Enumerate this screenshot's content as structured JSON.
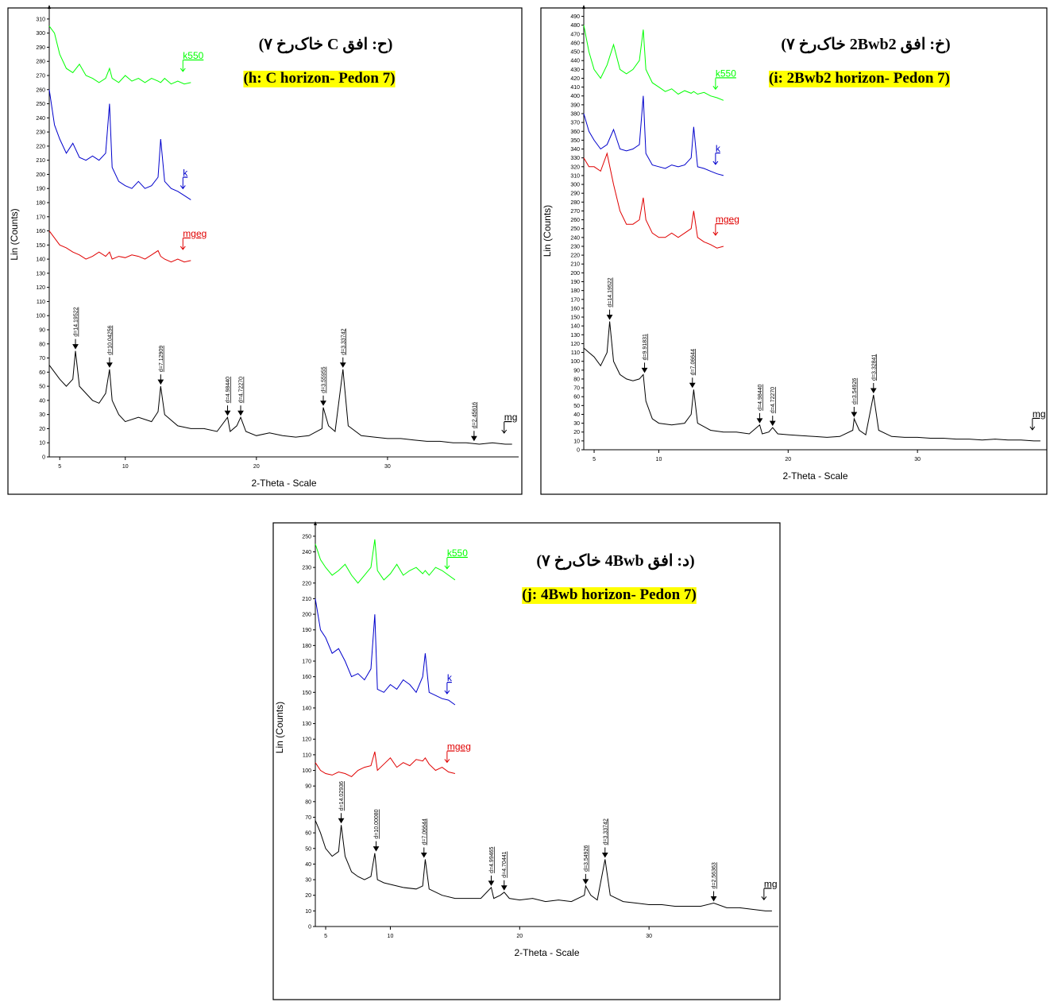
{
  "chart_data": [
    {
      "type": "line",
      "title": "(ح: افق C خاک‌رخ ۷)",
      "subtitle": "(h: C horizon- Pedon 7)",
      "xlabel": "2-Theta - Scale",
      "ylabel": "Lin (Counts)",
      "xlim": [
        4.2,
        40
      ],
      "xticks": [
        5,
        10,
        20,
        30
      ],
      "ylim": [
        0,
        315
      ],
      "yticks": [
        0,
        10,
        20,
        30,
        40,
        50,
        60,
        70,
        80,
        90,
        100,
        110,
        120,
        130,
        140,
        150,
        160,
        170,
        180,
        190,
        200,
        210,
        220,
        230,
        240,
        250,
        260,
        270,
        280,
        290,
        300,
        310
      ],
      "series": [
        {
          "name": "k550",
          "color": "#00ff00",
          "x": [
            4.2,
            4.6,
            5,
            5.5,
            6,
            6.5,
            7,
            7.5,
            8,
            8.5,
            8.8,
            9,
            9.5,
            10,
            10.5,
            11,
            11.5,
            12,
            12.5,
            12.7,
            13,
            13.5,
            14,
            14.5,
            15
          ],
          "values": [
            305,
            300,
            285,
            275,
            272,
            278,
            270,
            268,
            265,
            268,
            275,
            268,
            265,
            270,
            266,
            268,
            265,
            268,
            266,
            265,
            268,
            264,
            266,
            264,
            265
          ]
        },
        {
          "name": "k",
          "color": "#0000cc",
          "x": [
            4.2,
            4.6,
            5,
            5.5,
            6,
            6.5,
            7,
            7.5,
            8,
            8.5,
            8.8,
            9,
            9.5,
            10,
            10.5,
            11,
            11.5,
            12,
            12.5,
            12.7,
            13,
            13.5,
            14,
            14.5,
            15
          ],
          "values": [
            260,
            235,
            225,
            215,
            222,
            212,
            210,
            213,
            210,
            215,
            250,
            205,
            195,
            192,
            190,
            195,
            190,
            192,
            198,
            225,
            195,
            190,
            188,
            185,
            182
          ]
        },
        {
          "name": "mgeg",
          "color": "#e00000",
          "x": [
            4.2,
            4.6,
            5,
            5.5,
            6,
            6.5,
            7,
            7.5,
            8,
            8.5,
            8.8,
            9,
            9.5,
            10,
            10.5,
            11,
            11.5,
            12,
            12.5,
            12.7,
            13,
            13.5,
            14,
            14.5,
            15
          ],
          "values": [
            160,
            155,
            150,
            148,
            145,
            143,
            140,
            142,
            145,
            142,
            145,
            140,
            142,
            141,
            143,
            142,
            140,
            143,
            146,
            142,
            140,
            138,
            140,
            138,
            139
          ]
        },
        {
          "name": "mg",
          "color": "#000000",
          "x": [
            4.2,
            4.6,
            5,
            5.5,
            6,
            6.2,
            6.5,
            7,
            7.5,
            8,
            8.5,
            8.8,
            9,
            9.5,
            10,
            11,
            12,
            12.5,
            12.7,
            13,
            14,
            15,
            16,
            17,
            17.8,
            18,
            18.5,
            18.8,
            19.2,
            20,
            21,
            22,
            23,
            24,
            25,
            25.1,
            25.5,
            26,
            26.6,
            27,
            28,
            29,
            30,
            31,
            32,
            33,
            34,
            35,
            36,
            37,
            38,
            39,
            39.5
          ],
          "values": [
            65,
            60,
            55,
            50,
            55,
            75,
            50,
            45,
            40,
            38,
            45,
            62,
            40,
            30,
            25,
            28,
            25,
            32,
            50,
            30,
            22,
            20,
            20,
            18,
            28,
            18,
            22,
            28,
            18,
            15,
            17,
            15,
            14,
            15,
            20,
            35,
            22,
            18,
            62,
            22,
            15,
            14,
            13,
            13,
            12,
            11,
            11,
            10,
            10,
            9,
            10,
            9,
            9
          ]
        }
      ],
      "annotations": [
        {
          "text": "d=14.19522",
          "x": 6.2,
          "y": 75
        },
        {
          "text": "d=10.04256",
          "x": 8.8,
          "y": 62
        },
        {
          "text": "d=7.12909",
          "x": 12.7,
          "y": 50
        },
        {
          "text": "d=4.98440",
          "x": 17.8,
          "y": 28
        },
        {
          "text": "d=4.72270",
          "x": 18.8,
          "y": 28
        },
        {
          "text": "d=3.55955",
          "x": 25.1,
          "y": 35
        },
        {
          "text": "d=3.33742",
          "x": 26.6,
          "y": 62
        },
        {
          "text": "d=2.45616",
          "x": 36.6,
          "y": 10
        }
      ]
    },
    {
      "type": "line",
      "title": "(خ: افق 2Bwb2 خاک‌رخ ۷)",
      "subtitle": "(i: 2Bwb2 horizon- Pedon 7)",
      "xlabel": "2-Theta - Scale",
      "ylabel": "Lin (Counts)",
      "xlim": [
        4.2,
        40
      ],
      "xticks": [
        5,
        10,
        20,
        30
      ],
      "ylim": [
        0,
        495
      ],
      "yticks": [
        0,
        10,
        20,
        30,
        40,
        50,
        60,
        70,
        80,
        90,
        100,
        110,
        120,
        130,
        140,
        150,
        160,
        170,
        180,
        190,
        200,
        210,
        220,
        230,
        240,
        250,
        260,
        270,
        280,
        290,
        300,
        310,
        320,
        330,
        340,
        350,
        360,
        370,
        380,
        390,
        400,
        410,
        420,
        430,
        440,
        450,
        460,
        470,
        480,
        490
      ],
      "series": [
        {
          "name": "k550",
          "color": "#00ff00",
          "x": [
            4.2,
            4.6,
            5,
            5.5,
            6,
            6.5,
            7,
            7.5,
            8,
            8.5,
            8.8,
            9,
            9.5,
            10,
            10.5,
            11,
            11.5,
            12,
            12.5,
            12.7,
            13,
            13.5,
            14,
            14.5,
            15
          ],
          "values": [
            480,
            450,
            430,
            420,
            435,
            458,
            430,
            425,
            430,
            440,
            475,
            430,
            415,
            410,
            405,
            408,
            402,
            406,
            403,
            405,
            402,
            404,
            400,
            398,
            395
          ]
        },
        {
          "name": "k",
          "color": "#0000cc",
          "x": [
            4.2,
            4.6,
            5,
            5.5,
            6,
            6.5,
            7,
            7.5,
            8,
            8.5,
            8.8,
            9,
            9.5,
            10,
            10.5,
            11,
            11.5,
            12,
            12.5,
            12.7,
            13,
            13.5,
            14,
            14.5,
            15
          ],
          "values": [
            380,
            360,
            350,
            340,
            345,
            362,
            340,
            338,
            340,
            345,
            400,
            335,
            322,
            320,
            318,
            322,
            320,
            322,
            330,
            365,
            320,
            318,
            315,
            312,
            310
          ]
        },
        {
          "name": "mgeg",
          "color": "#e00000",
          "x": [
            4.2,
            4.6,
            5,
            5.5,
            6,
            6.5,
            7,
            7.5,
            8,
            8.5,
            8.8,
            9,
            9.5,
            10,
            10.5,
            11,
            11.5,
            12,
            12.5,
            12.7,
            13,
            13.5,
            14,
            14.5,
            15
          ],
          "values": [
            330,
            320,
            320,
            315,
            335,
            300,
            270,
            255,
            255,
            260,
            285,
            260,
            245,
            240,
            240,
            245,
            240,
            245,
            250,
            270,
            240,
            235,
            232,
            228,
            230
          ]
        },
        {
          "name": "mg",
          "color": "#000000",
          "x": [
            4.2,
            4.6,
            5,
            5.5,
            6,
            6.2,
            6.5,
            7,
            7.5,
            8,
            8.5,
            8.8,
            9,
            9.5,
            10,
            11,
            12,
            12.5,
            12.7,
            13,
            14,
            15,
            16,
            17,
            17.8,
            18,
            18.5,
            18.8,
            19.2,
            20,
            21,
            22,
            23,
            24,
            25,
            25.1,
            25.5,
            26,
            26.6,
            27,
            28,
            29,
            30,
            31,
            32,
            33,
            34,
            35,
            36,
            37,
            38,
            39,
            39.5
          ],
          "values": [
            115,
            110,
            105,
            95,
            110,
            145,
            100,
            85,
            80,
            78,
            80,
            85,
            55,
            35,
            30,
            28,
            30,
            40,
            68,
            30,
            22,
            20,
            20,
            18,
            28,
            18,
            20,
            25,
            18,
            17,
            16,
            15,
            14,
            15,
            22,
            35,
            22,
            17,
            62,
            22,
            15,
            14,
            14,
            13,
            13,
            12,
            12,
            11,
            12,
            11,
            11,
            10,
            10
          ]
        }
      ],
      "annotations": [
        {
          "text": "d=14.19522",
          "x": 6.2,
          "y": 145
        },
        {
          "text": "d=9.91831",
          "x": 8.9,
          "y": 85
        },
        {
          "text": "d=7.06644",
          "x": 12.6,
          "y": 68
        },
        {
          "text": "d=4.98440",
          "x": 17.8,
          "y": 28
        },
        {
          "text": "d=4.72270",
          "x": 18.8,
          "y": 25
        },
        {
          "text": "d=3.54926",
          "x": 25.1,
          "y": 35
        },
        {
          "text": "d=3.32841",
          "x": 26.6,
          "y": 62
        }
      ]
    },
    {
      "type": "line",
      "title": "(د: افق 4Bwb خاک‌رخ ۷)",
      "subtitle": "(j: 4Bwb horizon- Pedon 7)",
      "xlabel": "2-Theta - Scale",
      "ylabel": "Lin (Counts)",
      "xlim": [
        4.2,
        40
      ],
      "xticks": [
        5,
        10,
        20,
        30
      ],
      "ylim": [
        0,
        255
      ],
      "yticks": [
        0,
        10,
        20,
        30,
        40,
        50,
        60,
        70,
        80,
        90,
        100,
        110,
        120,
        130,
        140,
        150,
        160,
        170,
        180,
        190,
        200,
        210,
        220,
        230,
        240,
        250
      ],
      "series": [
        {
          "name": "k550",
          "color": "#00ff00",
          "x": [
            4.2,
            4.6,
            5,
            5.5,
            6,
            6.5,
            7,
            7.5,
            8,
            8.5,
            8.8,
            9,
            9.5,
            10,
            10.5,
            11,
            11.5,
            12,
            12.5,
            12.7,
            13,
            13.5,
            14,
            14.5,
            15
          ],
          "values": [
            245,
            235,
            230,
            225,
            228,
            232,
            225,
            220,
            225,
            230,
            248,
            228,
            222,
            226,
            232,
            225,
            228,
            230,
            226,
            228,
            225,
            230,
            228,
            225,
            222
          ]
        },
        {
          "name": "k",
          "color": "#0000cc",
          "x": [
            4.2,
            4.6,
            5,
            5.5,
            6,
            6.5,
            7,
            7.5,
            8,
            8.5,
            8.8,
            9,
            9.5,
            10,
            10.5,
            11,
            11.5,
            12,
            12.5,
            12.7,
            13,
            13.5,
            14,
            14.5,
            15
          ],
          "values": [
            210,
            190,
            185,
            175,
            178,
            170,
            160,
            162,
            158,
            165,
            200,
            152,
            150,
            155,
            152,
            158,
            155,
            150,
            160,
            175,
            150,
            148,
            146,
            145,
            142
          ]
        },
        {
          "name": "mgeg",
          "color": "#e00000",
          "x": [
            4.2,
            4.6,
            5,
            5.5,
            6,
            6.5,
            7,
            7.5,
            8,
            8.5,
            8.8,
            9,
            9.5,
            10,
            10.5,
            11,
            11.5,
            12,
            12.5,
            12.7,
            13,
            13.5,
            14,
            14.5,
            15
          ],
          "values": [
            105,
            100,
            98,
            97,
            99,
            98,
            96,
            100,
            102,
            103,
            112,
            100,
            104,
            108,
            102,
            105,
            103,
            107,
            106,
            108,
            104,
            100,
            102,
            99,
            98
          ]
        },
        {
          "name": "mg",
          "color": "#000000",
          "x": [
            4.2,
            4.6,
            5,
            5.5,
            6,
            6.2,
            6.5,
            7,
            7.5,
            8,
            8.5,
            8.8,
            9,
            9.5,
            10,
            11,
            12,
            12.5,
            12.7,
            13,
            14,
            15,
            16,
            17,
            17.8,
            18,
            18.5,
            18.8,
            19.2,
            20,
            21,
            22,
            23,
            24,
            25,
            25.1,
            25.5,
            26,
            26.6,
            27,
            28,
            29,
            30,
            31,
            32,
            33,
            34,
            35,
            36,
            37,
            38,
            39,
            39.5
          ],
          "values": [
            68,
            60,
            50,
            45,
            48,
            65,
            45,
            35,
            32,
            30,
            32,
            47,
            30,
            28,
            27,
            25,
            24,
            26,
            43,
            24,
            20,
            18,
            18,
            18,
            25,
            18,
            20,
            22,
            18,
            17,
            18,
            16,
            17,
            16,
            20,
            26,
            20,
            17,
            43,
            20,
            16,
            15,
            14,
            14,
            13,
            13,
            13,
            15,
            12,
            12,
            11,
            10,
            10
          ]
        }
      ],
      "annotations": [
        {
          "text": "d=14.02936",
          "x": 6.2,
          "y": 65
        },
        {
          "text": "d=10.00080",
          "x": 8.9,
          "y": 47
        },
        {
          "text": "d=7.06644",
          "x": 12.6,
          "y": 43
        },
        {
          "text": "d=4.99465",
          "x": 17.8,
          "y": 25
        },
        {
          "text": "d=4.70441",
          "x": 18.8,
          "y": 22
        },
        {
          "text": "d=3.54926",
          "x": 25.1,
          "y": 26
        },
        {
          "text": "d=3.33742",
          "x": 26.6,
          "y": 43
        },
        {
          "text": "d=2.56363",
          "x": 35,
          "y": 15
        }
      ]
    }
  ]
}
